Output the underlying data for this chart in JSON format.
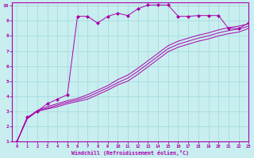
{
  "bg_color": "#c8eef0",
  "grid_color": "#a0d8d8",
  "line_color": "#aa00aa",
  "xlim": [
    -0.5,
    23
  ],
  "ylim": [
    1,
    10.2
  ],
  "xticks": [
    0,
    1,
    2,
    3,
    4,
    5,
    6,
    7,
    8,
    9,
    10,
    11,
    12,
    13,
    14,
    15,
    16,
    17,
    18,
    19,
    20,
    21,
    22,
    23
  ],
  "yticks": [
    1,
    2,
    3,
    4,
    5,
    6,
    7,
    8,
    9,
    10
  ],
  "xlabel": "Windchill (Refroidissement éolien,°C)",
  "curve_top_x": [
    0,
    1,
    2,
    3,
    4,
    5,
    6,
    7,
    8,
    9,
    10,
    11,
    12,
    13,
    14,
    15,
    16,
    17,
    18,
    19,
    20,
    21,
    22,
    23
  ],
  "curve_top_y": [
    1.0,
    2.6,
    3.0,
    3.5,
    3.8,
    4.1,
    9.3,
    9.3,
    8.85,
    9.3,
    9.5,
    9.35,
    9.8,
    10.05,
    10.05,
    10.05,
    9.3,
    9.3,
    9.35,
    9.35,
    9.35,
    8.5,
    8.5,
    8.85
  ],
  "curve_mid1_x": [
    0,
    1,
    2,
    3,
    4,
    5,
    6,
    7,
    8,
    9,
    10,
    11,
    12,
    13,
    14,
    15,
    16,
    17,
    18,
    19,
    20,
    21,
    22,
    23
  ],
  "curve_mid1_y": [
    1.0,
    2.55,
    3.05,
    3.3,
    3.5,
    3.7,
    3.85,
    4.1,
    4.4,
    4.7,
    5.1,
    5.4,
    5.85,
    6.35,
    6.85,
    7.35,
    7.65,
    7.85,
    8.05,
    8.2,
    8.4,
    8.55,
    8.65,
    8.8
  ],
  "curve_mid2_x": [
    0,
    1,
    2,
    3,
    4,
    5,
    6,
    7,
    8,
    9,
    10,
    11,
    12,
    13,
    14,
    15,
    16,
    17,
    18,
    19,
    20,
    21,
    22,
    23
  ],
  "curve_mid2_y": [
    1.0,
    2.5,
    3.0,
    3.2,
    3.4,
    3.6,
    3.75,
    3.95,
    4.25,
    4.55,
    4.9,
    5.2,
    5.65,
    6.15,
    6.65,
    7.15,
    7.45,
    7.65,
    7.85,
    8.0,
    8.2,
    8.35,
    8.45,
    8.65
  ],
  "curve_low_x": [
    0,
    1,
    2,
    3,
    4,
    5,
    6,
    7,
    8,
    9,
    10,
    11,
    12,
    13,
    14,
    15,
    16,
    17,
    18,
    19,
    20,
    21,
    22,
    23
  ],
  "curve_low_y": [
    1.0,
    2.5,
    3.0,
    3.15,
    3.3,
    3.5,
    3.65,
    3.8,
    4.1,
    4.4,
    4.75,
    5.0,
    5.45,
    5.95,
    6.45,
    6.95,
    7.25,
    7.45,
    7.65,
    7.8,
    8.0,
    8.15,
    8.25,
    8.5
  ]
}
